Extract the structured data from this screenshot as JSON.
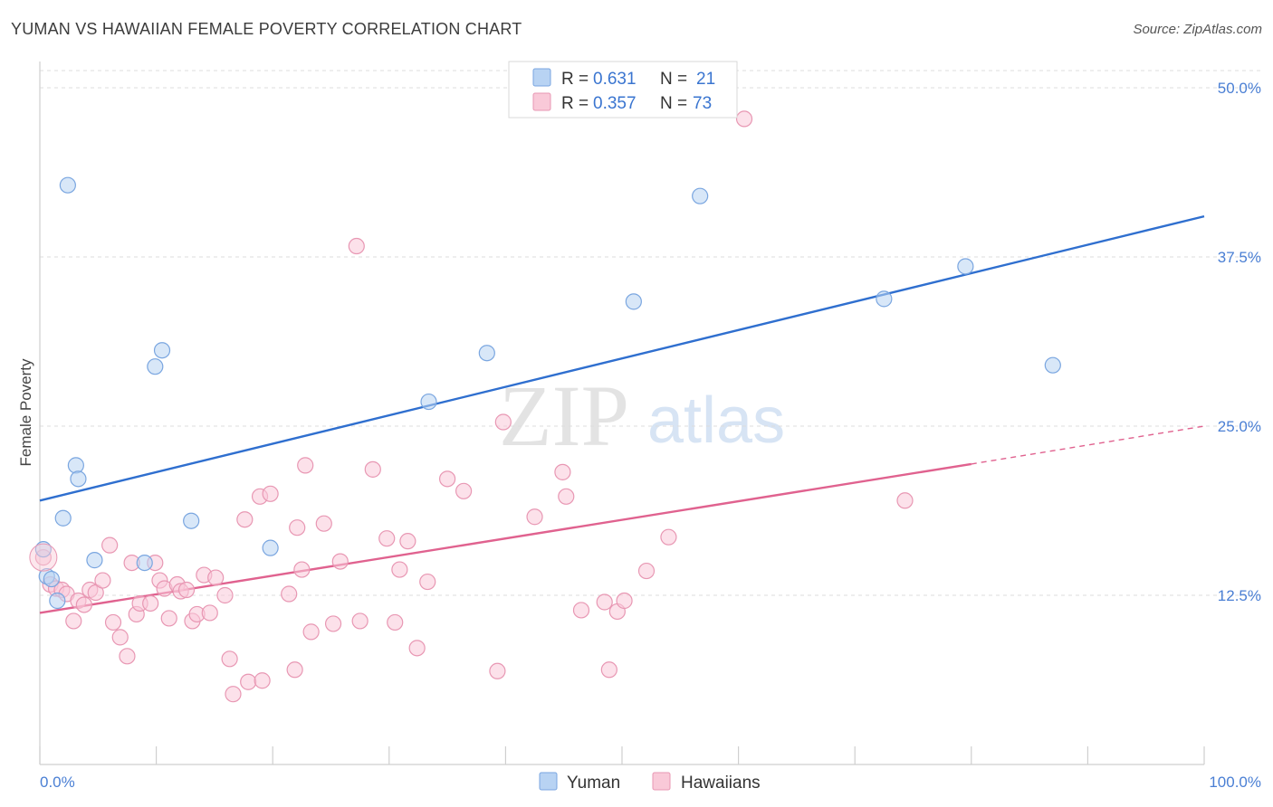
{
  "header": {
    "title": "YUMAN VS HAWAIIAN FEMALE POVERTY CORRELATION CHART",
    "source": "Source: ZipAtlas.com"
  },
  "legend": {
    "yuman": {
      "r_label": "R =",
      "r_value": "0.631",
      "n_label": "N =",
      "n_value": "21"
    },
    "hawaiians": {
      "r_label": "R =",
      "r_value": "0.357",
      "n_label": "N =",
      "n_value": "73"
    }
  },
  "watermark": {
    "zip": "ZIP",
    "atlas": "atlas"
  },
  "colors": {
    "yuman_fill": "#b8d3f3",
    "yuman_stroke": "#7aa6e0",
    "yuman_line": "#2f6fcf",
    "hawaiian_fill": "#f9c9d8",
    "hawaiian_stroke": "#e897b3",
    "hawaiian_line": "#e0628f",
    "tick_text": "#4a7fd4",
    "grid": "#dcdcdc"
  },
  "chart_data": {
    "type": "scatter",
    "title": "YUMAN VS HAWAIIAN FEMALE POVERTY CORRELATION CHART",
    "xlabel": "",
    "ylabel": "Female Poverty",
    "xlim": [
      0,
      100
    ],
    "ylim": [
      0,
      50
    ],
    "x_tick_labels": [
      "0.0%",
      "100.0%"
    ],
    "y_ticks": [
      12.5,
      25.0,
      37.5,
      50.0
    ],
    "y_tick_labels": [
      "12.5%",
      "25.0%",
      "37.5%",
      "50.0%"
    ],
    "grid": "horizontal dashed",
    "legend_position": "top-center",
    "series": [
      {
        "name": "Yuman",
        "R": 0.631,
        "N": 21,
        "trend": {
          "x": [
            0,
            100
          ],
          "y": [
            19.5,
            40.5
          ]
        },
        "points": [
          [
            0.3,
            15.9
          ],
          [
            0.6,
            13.9
          ],
          [
            1.0,
            13.7
          ],
          [
            1.5,
            12.1
          ],
          [
            2.0,
            18.2
          ],
          [
            2.4,
            42.8
          ],
          [
            3.1,
            22.1
          ],
          [
            3.3,
            21.1
          ],
          [
            4.7,
            15.1
          ],
          [
            9.0,
            14.9
          ],
          [
            9.9,
            29.4
          ],
          [
            10.5,
            30.6
          ],
          [
            13.0,
            18.0
          ],
          [
            19.8,
            16.0
          ],
          [
            33.4,
            26.8
          ],
          [
            38.4,
            30.4
          ],
          [
            51.0,
            34.2
          ],
          [
            56.7,
            42.0
          ],
          [
            72.5,
            34.4
          ],
          [
            79.5,
            36.8
          ],
          [
            87.0,
            29.5
          ]
        ]
      },
      {
        "name": "Hawaiians",
        "R": 0.357,
        "N": 73,
        "trend": {
          "x": [
            0,
            80
          ],
          "y": [
            11.2,
            22.2
          ]
        },
        "trend_extension": {
          "x": [
            80,
            100
          ],
          "y": [
            22.2,
            25.0
          ]
        },
        "points": [
          [
            0.3,
            15.3
          ],
          [
            0.9,
            13.3
          ],
          [
            1.4,
            13.0
          ],
          [
            1.9,
            12.9
          ],
          [
            2.3,
            12.6
          ],
          [
            2.9,
            10.6
          ],
          [
            3.3,
            12.1
          ],
          [
            3.8,
            11.8
          ],
          [
            4.3,
            12.9
          ],
          [
            4.8,
            12.7
          ],
          [
            5.4,
            13.6
          ],
          [
            6.0,
            16.2
          ],
          [
            6.3,
            10.5
          ],
          [
            6.9,
            9.4
          ],
          [
            7.5,
            8.0
          ],
          [
            7.9,
            14.9
          ],
          [
            8.3,
            11.1
          ],
          [
            8.6,
            11.9
          ],
          [
            9.5,
            11.9
          ],
          [
            9.9,
            14.9
          ],
          [
            10.3,
            13.6
          ],
          [
            10.7,
            13.0
          ],
          [
            11.1,
            10.8
          ],
          [
            11.8,
            13.3
          ],
          [
            12.1,
            12.8
          ],
          [
            12.6,
            12.9
          ],
          [
            13.1,
            10.6
          ],
          [
            13.5,
            11.1
          ],
          [
            14.1,
            14.0
          ],
          [
            14.6,
            11.2
          ],
          [
            15.1,
            13.8
          ],
          [
            15.9,
            12.5
          ],
          [
            16.3,
            7.8
          ],
          [
            16.6,
            5.2
          ],
          [
            17.6,
            18.1
          ],
          [
            17.9,
            6.1
          ],
          [
            18.9,
            19.8
          ],
          [
            19.1,
            6.2
          ],
          [
            19.8,
            20.0
          ],
          [
            21.4,
            12.6
          ],
          [
            21.9,
            7.0
          ],
          [
            22.1,
            17.5
          ],
          [
            22.5,
            14.4
          ],
          [
            22.8,
            22.1
          ],
          [
            23.3,
            9.8
          ],
          [
            24.4,
            17.8
          ],
          [
            25.2,
            10.4
          ],
          [
            25.8,
            15.0
          ],
          [
            27.2,
            38.3
          ],
          [
            27.5,
            10.6
          ],
          [
            28.6,
            21.8
          ],
          [
            29.8,
            16.7
          ],
          [
            30.5,
            10.5
          ],
          [
            30.9,
            14.4
          ],
          [
            31.6,
            16.5
          ],
          [
            32.4,
            8.6
          ],
          [
            33.3,
            13.5
          ],
          [
            35.0,
            21.1
          ],
          [
            36.4,
            20.2
          ],
          [
            39.3,
            6.9
          ],
          [
            39.8,
            25.3
          ],
          [
            42.5,
            18.3
          ],
          [
            44.9,
            21.6
          ],
          [
            45.2,
            19.8
          ],
          [
            46.5,
            11.4
          ],
          [
            48.5,
            12.0
          ],
          [
            48.9,
            7.0
          ],
          [
            49.6,
            11.3
          ],
          [
            50.2,
            12.1
          ],
          [
            52.1,
            14.3
          ],
          [
            54.0,
            16.8
          ],
          [
            60.5,
            47.7
          ],
          [
            74.3,
            19.5
          ]
        ]
      }
    ]
  },
  "bottom_legend": {
    "yuman_label": "Yuman",
    "hawaiians_label": "Hawaiians"
  }
}
